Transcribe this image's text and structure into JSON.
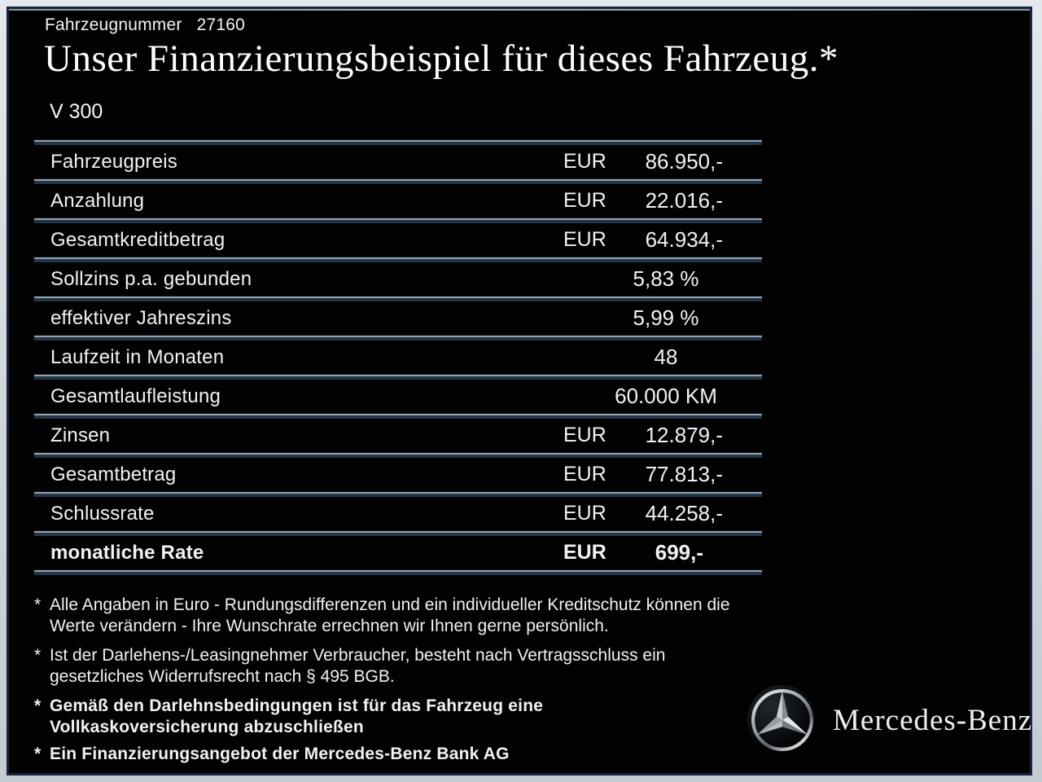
{
  "header": {
    "vehicle_number_label": "Fahrzeugnummer",
    "vehicle_number": "27160",
    "title": "Unser Finanzierungsbeispiel für dieses Fahrzeug.*",
    "model": "V 300"
  },
  "table": {
    "rows": [
      {
        "label": "Fahrzeugpreis",
        "currency": "EUR",
        "amount": "86.950,-",
        "bold": false
      },
      {
        "label": "Anzahlung",
        "currency": "EUR",
        "amount": "22.016,-",
        "bold": false
      },
      {
        "label": "Gesamtkreditbetrag",
        "currency": "EUR",
        "amount": "64.934,-",
        "bold": false
      },
      {
        "label": "Sollzins p.a. gebunden",
        "value": "5,83 %",
        "bold": false
      },
      {
        "label": "effektiver Jahreszins",
        "value": "5,99 %",
        "bold": false
      },
      {
        "label": "Laufzeit in Monaten",
        "value": "48",
        "bold": false
      },
      {
        "label": "Gesamtlaufleistung",
        "value": "60.000 KM",
        "bold": false
      },
      {
        "label": "Zinsen",
        "currency": "EUR",
        "amount": "12.879,-",
        "bold": false
      },
      {
        "label": "Gesamtbetrag",
        "currency": "EUR",
        "amount": "77.813,-",
        "bold": false
      },
      {
        "label": "Schlussrate",
        "currency": "EUR",
        "amount": "44.258,-",
        "bold": false
      },
      {
        "label": "monatliche Rate",
        "currency": "EUR",
        "amount": "699,-",
        "bold": true
      }
    ]
  },
  "footnotes": [
    {
      "marker": "*",
      "bold": false,
      "lines": [
        "Alle Angaben in Euro - Rundungsdifferenzen und ein individueller Kreditschutz können die",
        "Werte verändern - Ihre Wunschrate errechnen wir Ihnen gerne persönlich."
      ]
    },
    {
      "marker": "*",
      "bold": false,
      "lines": [
        "Ist der Darlehens-/Leasingnehmer Verbraucher, besteht nach Vertragsschluss ein",
        "gesetzliches Widerrufsrecht nach § 495 BGB."
      ]
    },
    {
      "marker": "*",
      "bold": true,
      "lines": [
        "Gemäß den Darlehnsbedingungen ist für das Fahrzeug eine",
        "Vollkaskoversicherung abzuschließen"
      ]
    },
    {
      "marker": "*",
      "bold": true,
      "lines": [
        "Ein Finanzierungsangebot der Mercedes-Benz Bank AG"
      ]
    }
  ],
  "brand": {
    "logo_icon": "mercedes-star-icon",
    "wordmark": "Mercedes-Benz"
  },
  "colors": {
    "background": "#020202",
    "frame_outer": "#cfd6db",
    "frame_border": "#16253c",
    "separator_light": "#97a2ac",
    "separator_dark": "#223549",
    "text": "#f0f2f4",
    "title": "#ffffff"
  }
}
